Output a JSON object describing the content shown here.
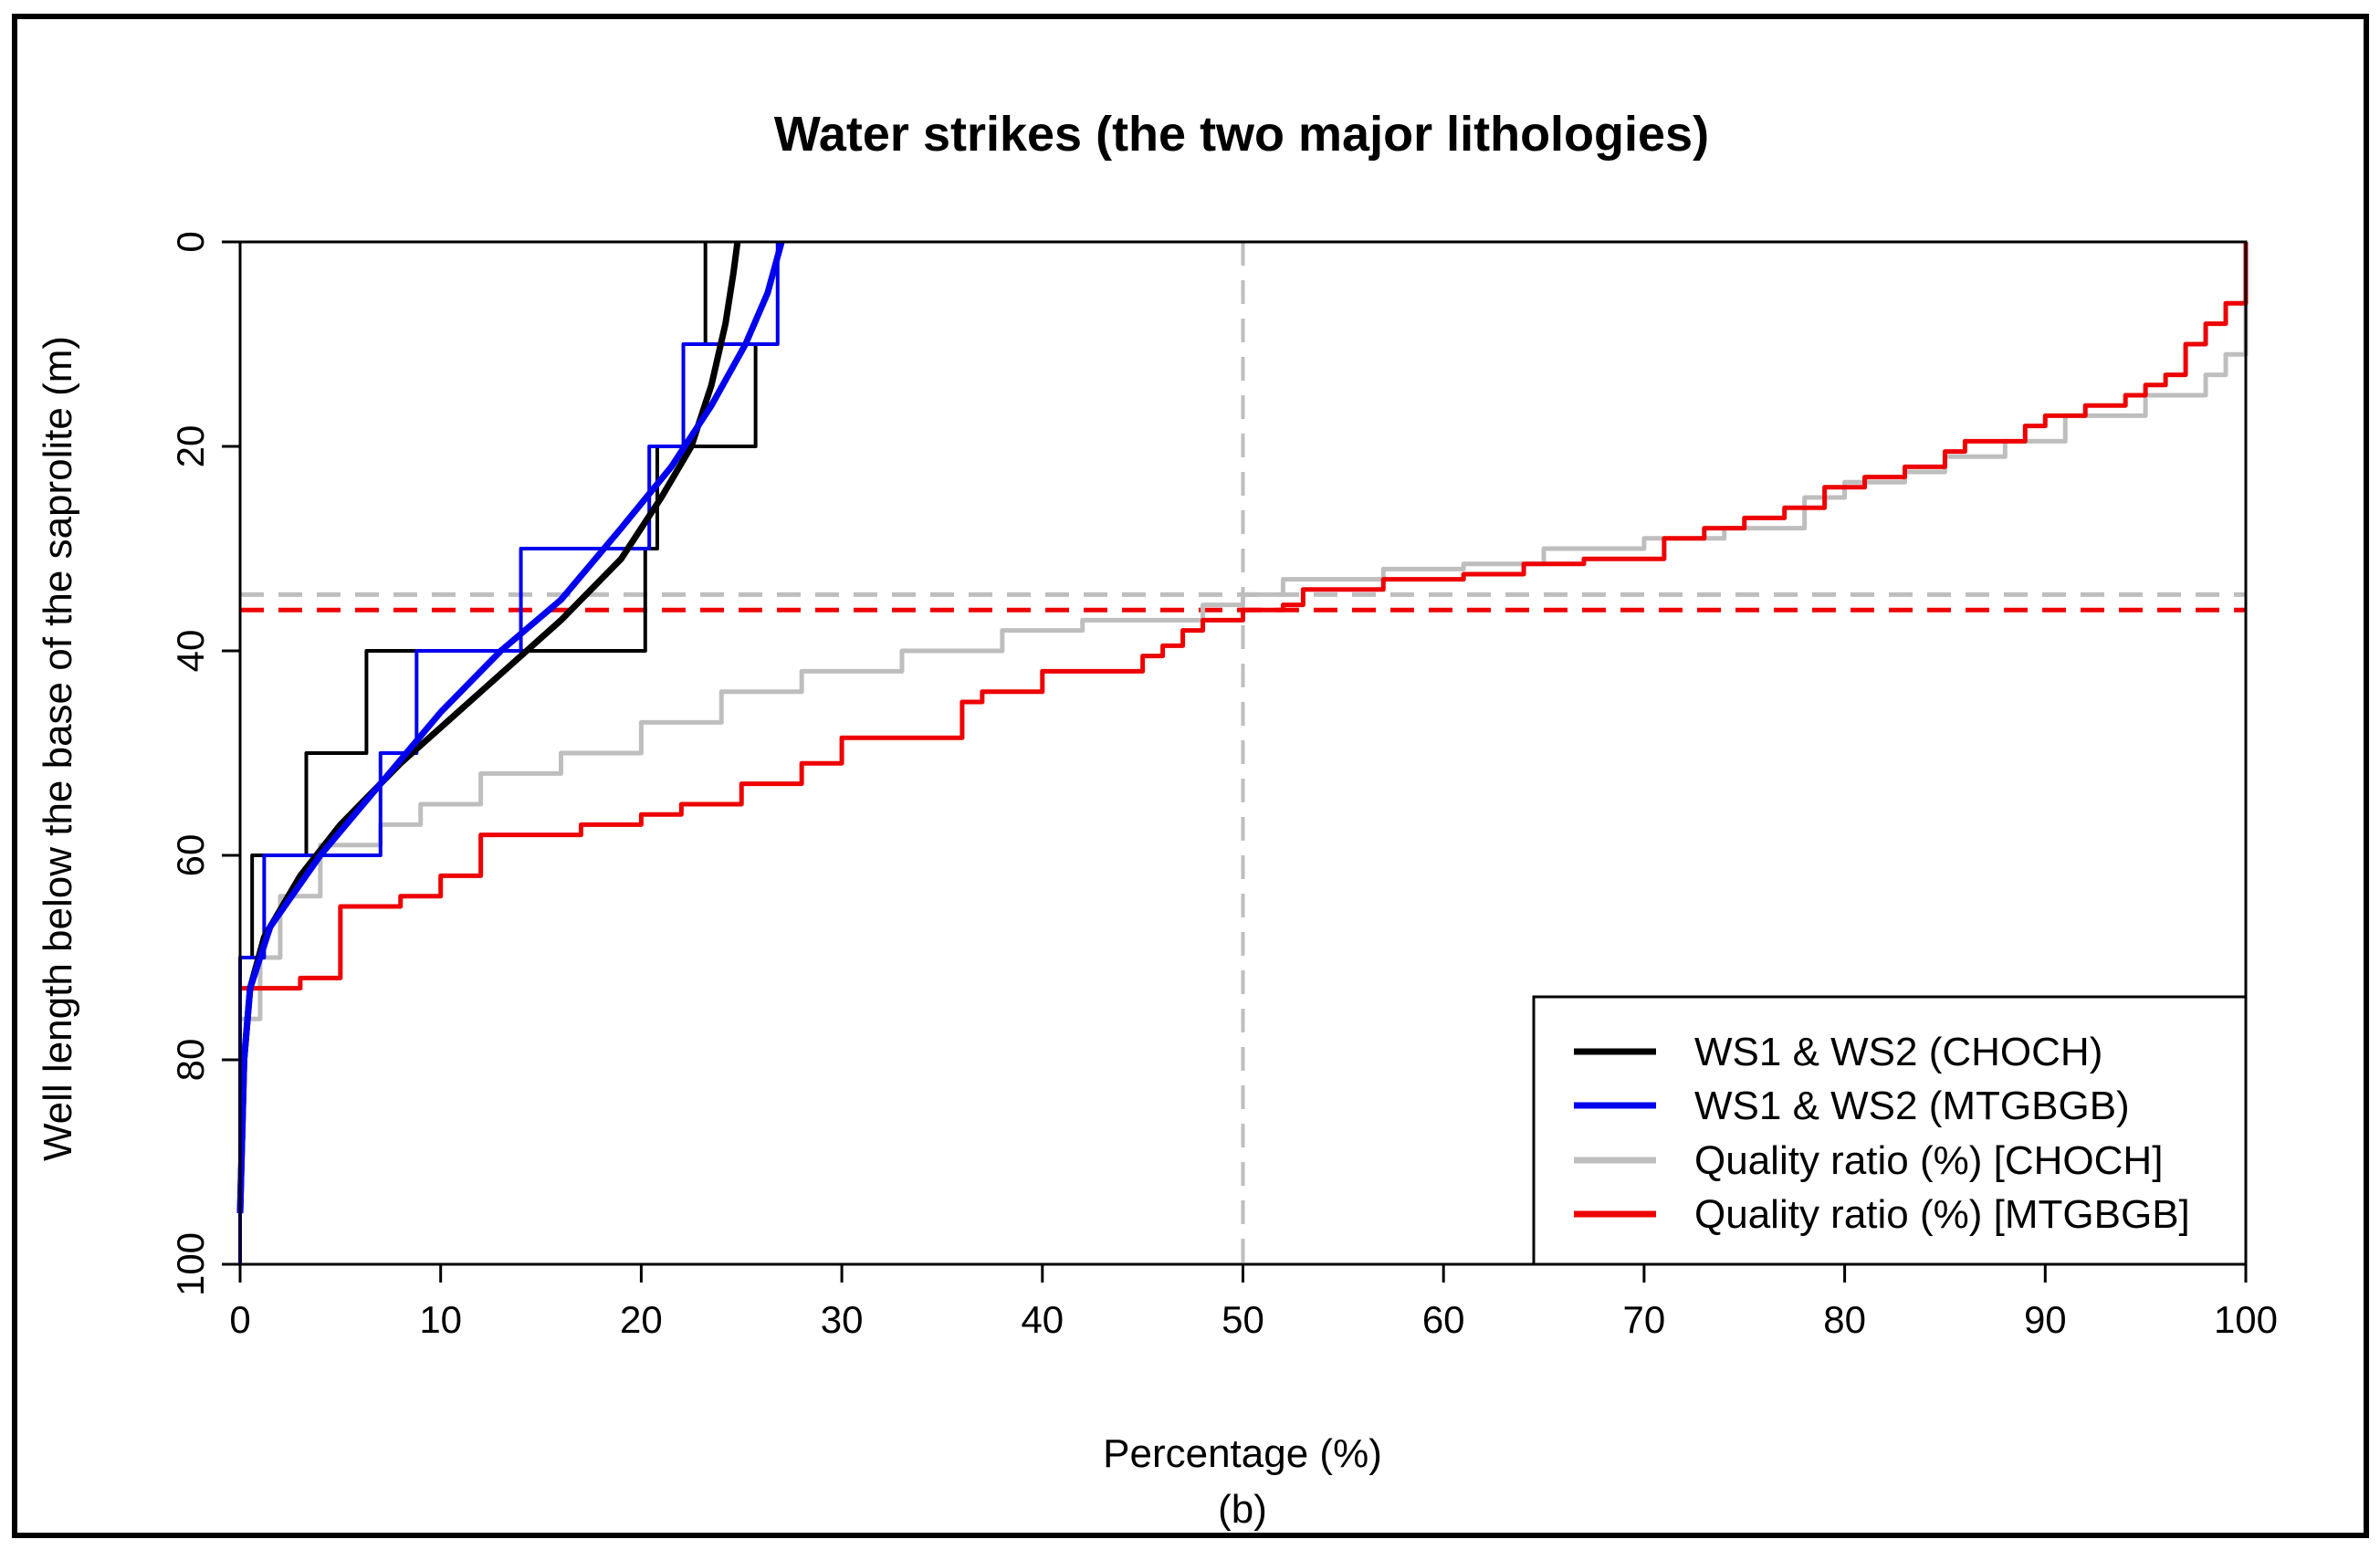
{
  "chart_data": {
    "type": "line",
    "title": "Water strikes (the two major lithologies)",
    "xlabel": "Percentage (%)",
    "ylabel": "Well length below the base of the saprolite (m)",
    "caption": "(b)",
    "xlim": [
      0,
      100
    ],
    "ylim": [
      0,
      100
    ],
    "y_inverted": true,
    "xticks": [
      "0",
      "10",
      "20",
      "30",
      "40",
      "50",
      "60",
      "70",
      "80",
      "90",
      "100"
    ],
    "yticks": [
      "0",
      "20",
      "40",
      "60",
      "80",
      "100"
    ],
    "legend_position": "bottom-right",
    "colors": {
      "ws_choch": "#000000",
      "ws_mtgbgb": "#0000ee",
      "qr_choch": "#bebebe",
      "qr_mtgbgb": "#ee0000"
    },
    "legend": [
      {
        "label": "WS1 & WS2 (CHOCH)",
        "color": "#000000"
      },
      {
        "label": "WS1 & WS2 (MTGBGB)",
        "color": "#0000ee"
      },
      {
        "label": "Quality ratio (%) [CHOCH]",
        "color": "#bebebe"
      },
      {
        "label": "Quality ratio (%) [MTGBGB]",
        "color": "#ee0000"
      }
    ],
    "reference_lines": {
      "vertical_x": 50,
      "horizontal_choch_y": 34.5,
      "horizontal_mtgbgb_y": 36
    },
    "series": [
      {
        "name": "WS1 & WS2 (CHOCH) histogram",
        "style": "step",
        "color": "#000000",
        "points": [
          [
            0,
            100
          ],
          [
            0,
            70
          ],
          [
            0.6,
            70
          ],
          [
            0.6,
            60
          ],
          [
            3.3,
            60
          ],
          [
            3.3,
            50
          ],
          [
            6.3,
            50
          ],
          [
            6.3,
            40
          ],
          [
            20.2,
            40
          ],
          [
            20.2,
            30
          ],
          [
            20.8,
            30
          ],
          [
            20.8,
            20
          ],
          [
            25.7,
            20
          ],
          [
            25.7,
            10
          ],
          [
            23.2,
            10
          ],
          [
            23.2,
            0
          ]
        ]
      },
      {
        "name": "WS1 & WS2 (MTGBGB) histogram",
        "style": "step",
        "color": "#0000ee",
        "points": [
          [
            0,
            100
          ],
          [
            0,
            70
          ],
          [
            1.2,
            70
          ],
          [
            1.2,
            60
          ],
          [
            7,
            60
          ],
          [
            7,
            50
          ],
          [
            8.8,
            50
          ],
          [
            8.8,
            40
          ],
          [
            14,
            40
          ],
          [
            14,
            30
          ],
          [
            20.4,
            30
          ],
          [
            20.4,
            20
          ],
          [
            22.1,
            20
          ],
          [
            22.1,
            10
          ],
          [
            26.8,
            10
          ],
          [
            26.8,
            0
          ]
        ]
      },
      {
        "name": "WS1 & WS2 (CHOCH) fit",
        "style": "smooth",
        "color": "#000000",
        "points": [
          [
            0,
            95
          ],
          [
            0.2,
            80
          ],
          [
            0.5,
            73
          ],
          [
            1.2,
            68
          ],
          [
            3,
            62
          ],
          [
            5,
            57
          ],
          [
            8,
            51
          ],
          [
            12,
            44
          ],
          [
            16,
            37
          ],
          [
            19,
            31
          ],
          [
            21,
            25
          ],
          [
            22.5,
            20
          ],
          [
            23.5,
            14
          ],
          [
            24.2,
            8
          ],
          [
            24.6,
            3
          ],
          [
            24.8,
            0
          ]
        ]
      },
      {
        "name": "WS1 & WS2 (MTGBGB) fit",
        "style": "smooth",
        "color": "#0000ee",
        "points": [
          [
            0,
            95
          ],
          [
            0.2,
            80
          ],
          [
            0.5,
            73
          ],
          [
            1.5,
            67
          ],
          [
            4,
            60
          ],
          [
            7,
            53
          ],
          [
            10,
            46
          ],
          [
            13,
            40
          ],
          [
            16,
            35
          ],
          [
            19,
            28
          ],
          [
            21.5,
            22
          ],
          [
            23.5,
            16
          ],
          [
            25.2,
            10
          ],
          [
            26.3,
            5
          ],
          [
            27,
            0
          ]
        ]
      },
      {
        "name": "Quality ratio (%) [CHOCH]",
        "style": "step",
        "color": "#bebebe",
        "points": [
          [
            0,
            76
          ],
          [
            1,
            70
          ],
          [
            2,
            64
          ],
          [
            4,
            59
          ],
          [
            7,
            57
          ],
          [
            9,
            55
          ],
          [
            12,
            52
          ],
          [
            16,
            50
          ],
          [
            20,
            47
          ],
          [
            24,
            44
          ],
          [
            28,
            42
          ],
          [
            33,
            40
          ],
          [
            38,
            38
          ],
          [
            42,
            37
          ],
          [
            48,
            35.5
          ],
          [
            50,
            34.5
          ],
          [
            52,
            33
          ],
          [
            57,
            32
          ],
          [
            61,
            31.5
          ],
          [
            65,
            30
          ],
          [
            70,
            29
          ],
          [
            74,
            28
          ],
          [
            78,
            25
          ],
          [
            80,
            23.5
          ],
          [
            83,
            22.5
          ],
          [
            85,
            21
          ],
          [
            88,
            19.5
          ],
          [
            91,
            17
          ],
          [
            95,
            15
          ],
          [
            98,
            13
          ],
          [
            99,
            11
          ],
          [
            100,
            9
          ],
          [
            100,
            0
          ]
        ]
      },
      {
        "name": "Quality ratio (%) [MTGBGB]",
        "style": "step",
        "color": "#ee0000",
        "points": [
          [
            0,
            73
          ],
          [
            3,
            72
          ],
          [
            5,
            70
          ],
          [
            5,
            65
          ],
          [
            8,
            64
          ],
          [
            10,
            62
          ],
          [
            12,
            60
          ],
          [
            12,
            58
          ],
          [
            17,
            57
          ],
          [
            20,
            56
          ],
          [
            22,
            55
          ],
          [
            25,
            53
          ],
          [
            28,
            51
          ],
          [
            30,
            49
          ],
          [
            30,
            48.5
          ],
          [
            36,
            47.5
          ],
          [
            36,
            45
          ],
          [
            37,
            44
          ],
          [
            40,
            42
          ],
          [
            45,
            40.5
          ],
          [
            46,
            39.5
          ],
          [
            47,
            38
          ],
          [
            48,
            37
          ],
          [
            50,
            36
          ],
          [
            52,
            35.5
          ],
          [
            53,
            34
          ],
          [
            57,
            33
          ],
          [
            61,
            32.5
          ],
          [
            64,
            31.5
          ],
          [
            67,
            31
          ],
          [
            71,
            29
          ],
          [
            73,
            28
          ],
          [
            75,
            27
          ],
          [
            77,
            26
          ],
          [
            79,
            24
          ],
          [
            81,
            23
          ],
          [
            83,
            22
          ],
          [
            85,
            20.5
          ],
          [
            86,
            19.5
          ],
          [
            89,
            18
          ],
          [
            90,
            17
          ],
          [
            92,
            16
          ],
          [
            94,
            15
          ],
          [
            95,
            14
          ],
          [
            96,
            13
          ],
          [
            97,
            12
          ],
          [
            97,
            10
          ],
          [
            98,
            8
          ],
          [
            99,
            6
          ],
          [
            100,
            6
          ],
          [
            100,
            0
          ]
        ]
      }
    ]
  }
}
